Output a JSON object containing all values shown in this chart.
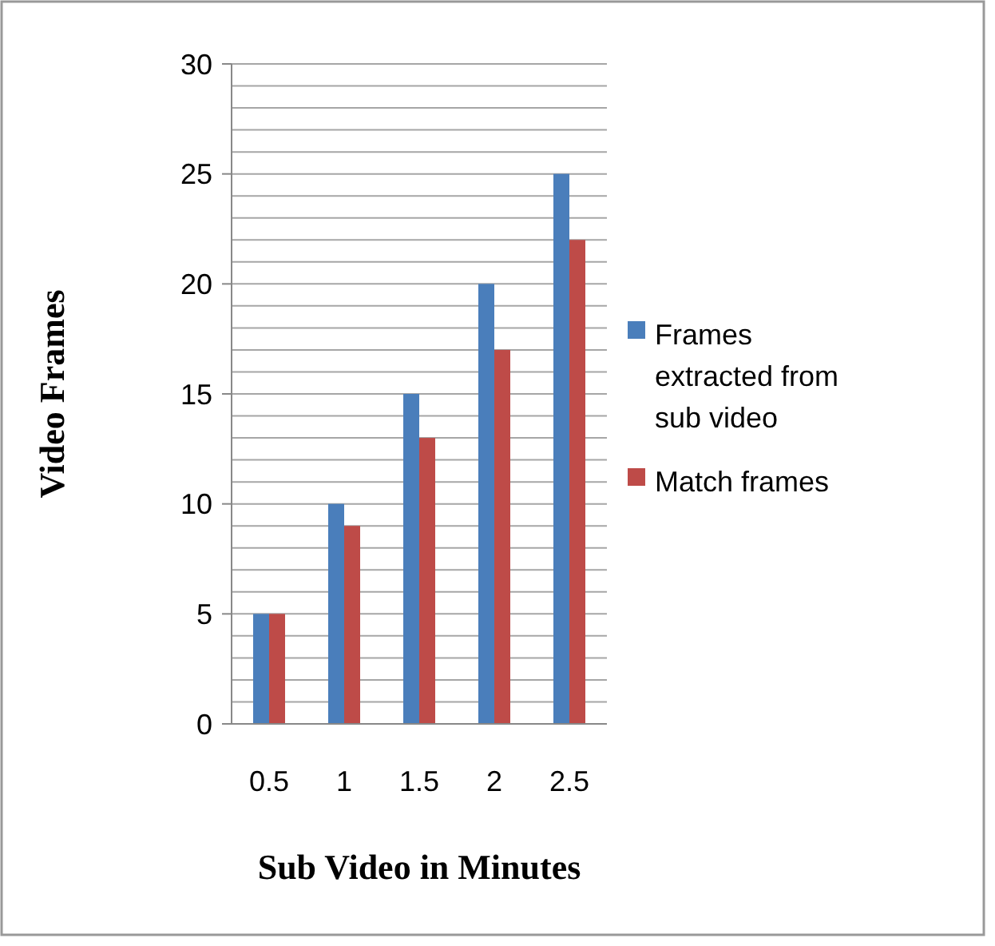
{
  "chart_data": {
    "type": "bar",
    "xlabel": "Sub Video in Minutes",
    "ylabel": "Video Frames",
    "categories": [
      "0.5",
      "1",
      "1.5",
      "2",
      "2.5"
    ],
    "series": [
      {
        "name": "Frames extracted from sub video",
        "color": "#4a7ebb",
        "values": [
          5,
          10,
          15,
          20,
          25
        ]
      },
      {
        "name": "Match frames",
        "color": "#be4b48",
        "values": [
          5,
          9,
          13,
          17,
          22
        ]
      }
    ],
    "ylim": [
      0,
      30
    ],
    "yticks": [
      0,
      {
        "value": 1,
        "label": null
      },
      {
        "value": 2,
        "label": null
      },
      {
        "value": 3,
        "label": null
      },
      {
        "value": 4,
        "label": null
      },
      5,
      {
        "value": 6,
        "label": null
      },
      {
        "value": 7,
        "label": null
      },
      {
        "value": 8,
        "label": null
      },
      {
        "value": 9,
        "label": null
      },
      10,
      {
        "value": 11,
        "label": null
      },
      {
        "value": 12,
        "label": null
      },
      {
        "value": 13,
        "label": null
      },
      {
        "value": 14,
        "label": null
      },
      15,
      {
        "value": 16,
        "label": null
      },
      {
        "value": 17,
        "label": null
      },
      {
        "value": 18,
        "label": null
      },
      {
        "value": 19,
        "label": null
      },
      20,
      {
        "value": 21,
        "label": null
      },
      {
        "value": 22,
        "label": null
      },
      {
        "value": 23,
        "label": null
      },
      {
        "value": 24,
        "label": null
      },
      25,
      {
        "value": 26,
        "label": null
      },
      {
        "value": 27,
        "label": null
      },
      {
        "value": 28,
        "label": null
      },
      {
        "value": 29,
        "label": null
      },
      30
    ],
    "grid": true,
    "legend": "right"
  }
}
